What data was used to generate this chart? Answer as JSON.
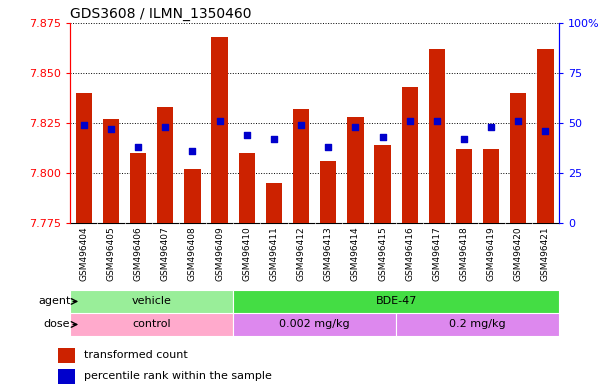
{
  "title": "GDS3608 / ILMN_1350460",
  "samples": [
    "GSM496404",
    "GSM496405",
    "GSM496406",
    "GSM496407",
    "GSM496408",
    "GSM496409",
    "GSM496410",
    "GSM496411",
    "GSM496412",
    "GSM496413",
    "GSM496414",
    "GSM496415",
    "GSM496416",
    "GSM496417",
    "GSM496418",
    "GSM496419",
    "GSM496420",
    "GSM496421"
  ],
  "transformed_count": [
    7.84,
    7.827,
    7.81,
    7.833,
    7.802,
    7.868,
    7.81,
    7.795,
    7.832,
    7.806,
    7.828,
    7.814,
    7.843,
    7.862,
    7.812,
    7.812,
    7.84,
    7.862
  ],
  "percentile_rank": [
    49,
    47,
    38,
    48,
    36,
    51,
    44,
    42,
    49,
    38,
    48,
    43,
    51,
    51,
    42,
    48,
    51,
    46
  ],
  "ylim_left": [
    7.775,
    7.875
  ],
  "ylim_right": [
    0,
    100
  ],
  "yticks_left": [
    7.775,
    7.8,
    7.825,
    7.85,
    7.875
  ],
  "yticks_right": [
    0,
    25,
    50,
    75,
    100
  ],
  "bar_color": "#CC2200",
  "dot_color": "#0000CC",
  "agent_groups": [
    {
      "label": "vehicle",
      "start": 0,
      "end": 6,
      "color": "#99EE99"
    },
    {
      "label": "BDE-47",
      "start": 6,
      "end": 18,
      "color": "#44DD44"
    }
  ],
  "dose_groups": [
    {
      "label": "control",
      "start": 0,
      "end": 6,
      "color": "#FFAACC"
    },
    {
      "label": "0.002 mg/kg",
      "start": 6,
      "end": 12,
      "color": "#DD88EE"
    },
    {
      "label": "0.2 mg/kg",
      "start": 12,
      "end": 18,
      "color": "#DD88EE"
    }
  ],
  "legend_items": [
    {
      "label": "transformed count",
      "color": "#CC2200"
    },
    {
      "label": "percentile rank within the sample",
      "color": "#0000CC"
    }
  ]
}
